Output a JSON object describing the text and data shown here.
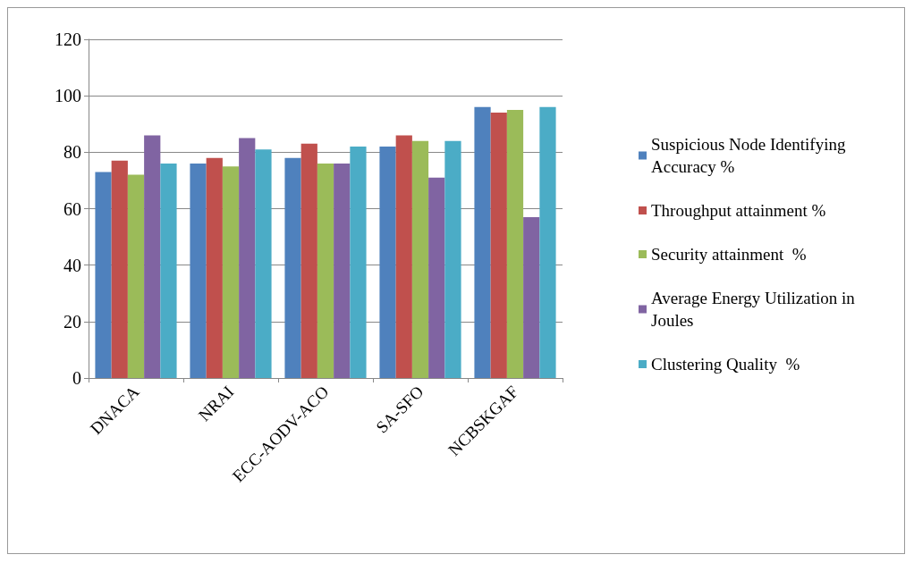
{
  "chart_data": {
    "type": "bar",
    "categories": [
      "DNACA",
      "NRAI",
      "ECC-AODV-ACO",
      "SA-SFO",
      "NCBSKGAF"
    ],
    "series": [
      {
        "name": "Suspicious Node Identifying Accuracy %",
        "color": "#4f81bd",
        "values": [
          73,
          76,
          78,
          82,
          96
        ]
      },
      {
        "name": "Throughput attainment %",
        "color": "#c0504d",
        "values": [
          77,
          78,
          83,
          86,
          94
        ]
      },
      {
        "name": "Security attainment  %",
        "color": "#9bbb59",
        "values": [
          72,
          75,
          76,
          84,
          95
        ]
      },
      {
        "name": "Average Energy Utilization in Joules",
        "color": "#8064a2",
        "values": [
          86,
          85,
          76,
          71,
          57
        ]
      },
      {
        "name": "Clustering Quality  %",
        "color": "#4bacc6",
        "values": [
          76,
          81,
          82,
          84,
          96
        ]
      }
    ],
    "ylim": [
      0,
      120
    ],
    "yticks": [
      0,
      20,
      40,
      60,
      80,
      100,
      120
    ],
    "grid": "y",
    "legend": "right"
  }
}
